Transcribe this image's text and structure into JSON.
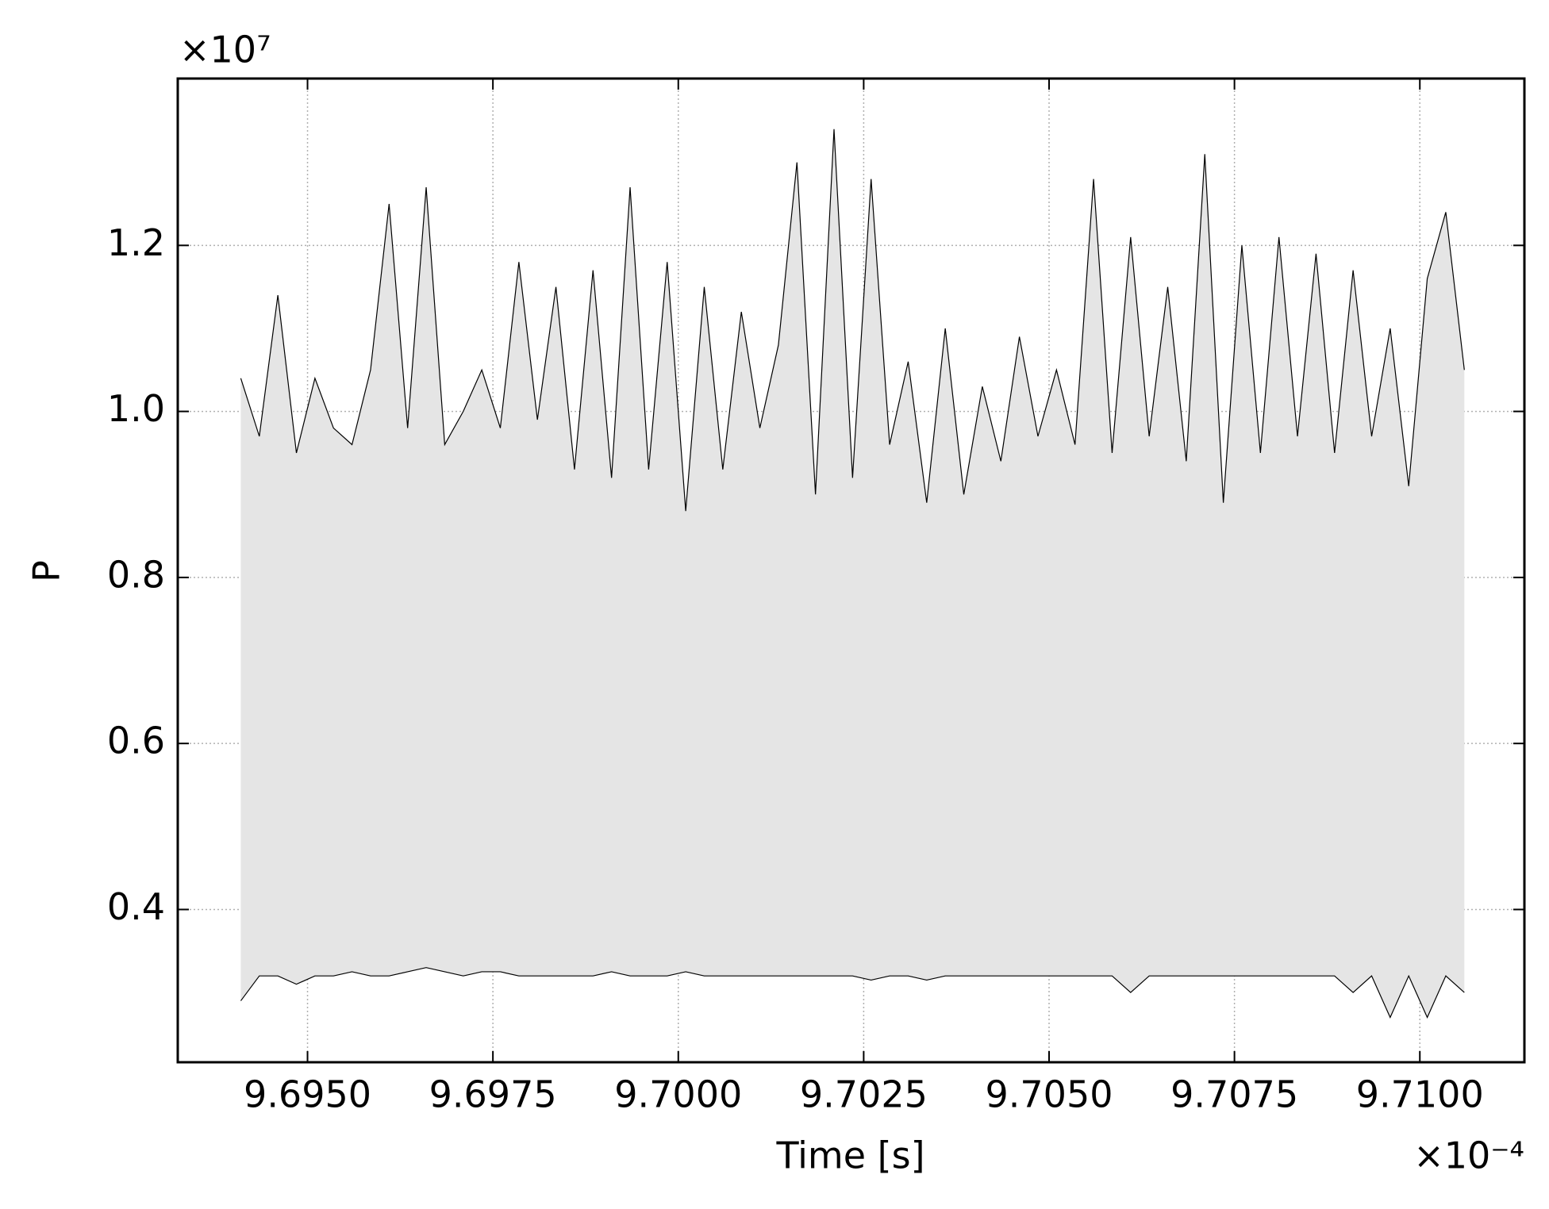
{
  "chart_data": {
    "type": "line",
    "x_label": "Time [s]",
    "y_label": "P",
    "x_offset": "×10⁻⁴",
    "y_offset": "×10⁷",
    "x": [
      9.6941,
      9.69435,
      9.6946,
      9.69485,
      9.6951,
      9.69535,
      9.6956,
      9.69585,
      9.6961,
      9.69635,
      9.6966,
      9.69685,
      9.6971,
      9.69735,
      9.6976,
      9.69785,
      9.6981,
      9.69835,
      9.6986,
      9.69885,
      9.6991,
      9.69935,
      9.6996,
      9.69985,
      9.7001,
      9.70035,
      9.7006,
      9.70085,
      9.7011,
      9.70135,
      9.7016,
      9.70185,
      9.7021,
      9.70235,
      9.7026,
      9.70285,
      9.7031,
      9.70335,
      9.7036,
      9.70385,
      9.7041,
      9.70435,
      9.7046,
      9.70485,
      9.7051,
      9.70535,
      9.7056,
      9.70585,
      9.7061,
      9.70635,
      9.7066,
      9.70685,
      9.7071,
      9.70735,
      9.7076,
      9.70785,
      9.7081,
      9.70835,
      9.7086,
      9.70885,
      9.7091,
      9.70935,
      9.7096,
      9.70985,
      9.7101,
      9.71035,
      9.7106
    ],
    "series": [
      {
        "color": "#000000",
        "values": [
          1.04,
          0.97,
          1.14,
          0.95,
          1.04,
          0.98,
          0.96,
          1.05,
          1.25,
          0.98,
          1.27,
          0.96,
          1.0,
          1.05,
          0.98,
          1.18,
          0.99,
          1.15,
          0.93,
          1.17,
          0.92,
          1.27,
          0.93,
          1.18,
          0.88,
          1.15,
          0.93,
          1.12,
          0.98,
          1.08,
          1.3,
          0.9,
          1.34,
          0.92,
          1.28,
          0.96,
          1.06,
          0.89,
          1.1,
          0.9,
          1.03,
          0.94,
          1.09,
          0.97,
          1.05,
          0.96,
          1.28,
          0.95,
          1.21,
          0.97,
          1.15,
          0.94,
          1.31,
          0.89,
          1.2,
          0.95,
          1.21,
          0.97,
          1.19,
          0.95,
          1.17,
          0.97,
          1.1,
          0.91,
          1.16,
          1.24,
          1.05
        ]
      },
      {
        "color": "#000000",
        "values": [
          0.29,
          0.32,
          0.32,
          0.31,
          0.32,
          0.32,
          0.325,
          0.32,
          0.32,
          0.325,
          0.33,
          0.325,
          0.32,
          0.325,
          0.325,
          0.32,
          0.32,
          0.32,
          0.32,
          0.32,
          0.325,
          0.32,
          0.32,
          0.32,
          0.325,
          0.32,
          0.32,
          0.32,
          0.32,
          0.32,
          0.32,
          0.32,
          0.32,
          0.32,
          0.315,
          0.32,
          0.32,
          0.315,
          0.32,
          0.32,
          0.32,
          0.32,
          0.32,
          0.32,
          0.32,
          0.32,
          0.32,
          0.32,
          0.3,
          0.32,
          0.32,
          0.32,
          0.32,
          0.32,
          0.32,
          0.32,
          0.32,
          0.32,
          0.32,
          0.32,
          0.3,
          0.32,
          0.27,
          0.32,
          0.27,
          0.32,
          0.3
        ]
      }
    ],
    "fill_between": true,
    "fill_color": "#e5e5e5",
    "xlim": [
      9.69325,
      9.71141
    ],
    "ylim": [
      0.216,
      1.401
    ],
    "xticks": [
      {
        "value": 9.695,
        "label": "9.6950"
      },
      {
        "value": 9.6975,
        "label": "9.6975"
      },
      {
        "value": 9.7,
        "label": "9.7000"
      },
      {
        "value": 9.7025,
        "label": "9.7025"
      },
      {
        "value": 9.705,
        "label": "9.7050"
      },
      {
        "value": 9.7075,
        "label": "9.7075"
      },
      {
        "value": 9.71,
        "label": "9.7100"
      }
    ],
    "yticks": [
      0.4,
      0.6,
      0.8,
      {
        "value": 1.0,
        "label": "1.0"
      },
      1.2
    ],
    "grid": true
  }
}
